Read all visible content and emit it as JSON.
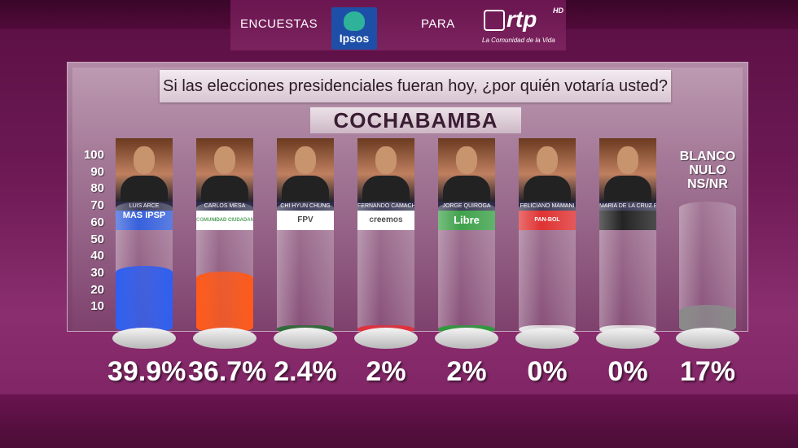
{
  "header": {
    "left_text": "ENCUESTAS",
    "ipsos_logo": "Ipsos",
    "middle_text": "PARA",
    "rtp_logo": "rtp",
    "rtp_hd": "HD",
    "rtp_tagline": "La Comunidad de la Vida"
  },
  "question": "Si las elecciones presidenciales fueran hoy, ¿por quién votaría usted?",
  "region": "COCHABAMBA",
  "blanco_label": "BLANCO NULO NS/NR",
  "colors": {
    "arce": "#2e5ff0",
    "mesa": "#ff5a1a",
    "chi": "#2d6b36",
    "camacho": "#e2303a",
    "quiroga": "#2e9a3c",
    "mamani": "#e8e8e8",
    "baya": "#e8e8e8",
    "blanco": "#8a8a8a"
  },
  "chart_data": {
    "type": "bar",
    "title": "Si las elecciones presidenciales fueran hoy, ¿por quién votaría usted?",
    "subtitle": "COCHABAMBA",
    "ylim": [
      0,
      100
    ],
    "yticks": [
      "100",
      "90",
      "80",
      "70",
      "60",
      "50",
      "40",
      "30",
      "20",
      "10"
    ],
    "categories": [
      "LUIS ARCE",
      "CARLOS MESA",
      "CHI HYUN CHUNG",
      "FERNANDO CAMACHO",
      "JORGE QUIROGA",
      "FELICIANO MAMANI",
      "MARIA DE LA CRUZ BAYA",
      "BLANCO NULO NS/NR"
    ],
    "parties": [
      "MAS IPSP",
      "COMUNIDAD CIUDADANA",
      "FPV",
      "creemos",
      "Libre",
      "PAN-BOL",
      "",
      ""
    ],
    "values": [
      39.9,
      36.7,
      2.4,
      2,
      2,
      0,
      0,
      17
    ],
    "value_labels": [
      "39.9%",
      "36.7%",
      "2.4%",
      "2%",
      "2%",
      "0%",
      "0%",
      "17%"
    ]
  }
}
